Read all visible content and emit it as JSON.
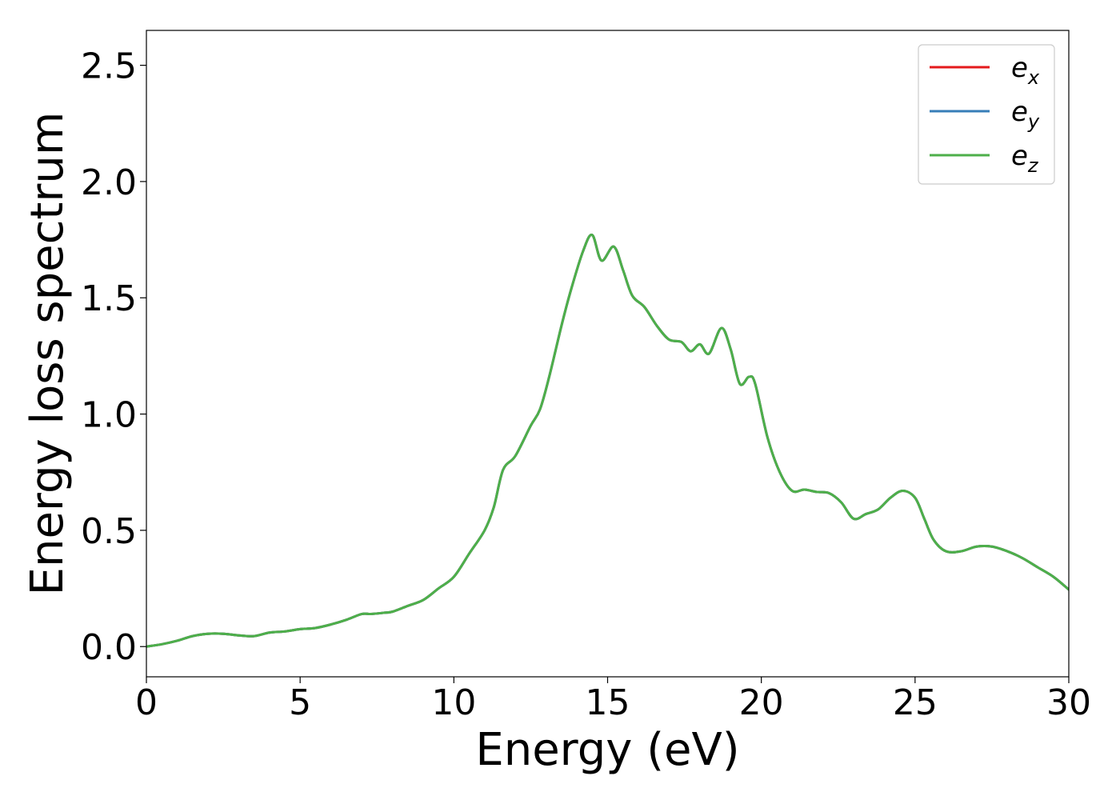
{
  "chart_data": {
    "type": "line",
    "xlabel": "Energy (eV)",
    "ylabel": "Energy loss spectrum",
    "xlim": [
      0,
      30
    ],
    "ylim": [
      -0.13,
      2.65
    ],
    "xticks": [
      0,
      5,
      10,
      15,
      20,
      25,
      30
    ],
    "xtick_labels": [
      "0",
      "5",
      "10",
      "15",
      "20",
      "25",
      "30"
    ],
    "yticks": [
      0.0,
      0.5,
      1.0,
      1.5,
      2.0,
      2.5
    ],
    "ytick_labels": [
      "0.0",
      "0.5",
      "1.0",
      "1.5",
      "2.0",
      "2.5"
    ],
    "grid": false,
    "legend": {
      "position": "top-right",
      "entries": [
        {
          "base": "e",
          "sub": "x",
          "color": "#e41a1c"
        },
        {
          "base": "e",
          "sub": "y",
          "color": "#377eb8"
        },
        {
          "base": "e",
          "sub": "z",
          "color": "#4daf4a"
        }
      ]
    },
    "x": [
      0,
      0.5,
      1,
      1.5,
      2,
      2.5,
      3,
      3.5,
      4,
      4.5,
      5,
      5.5,
      6,
      6.5,
      7,
      7.3,
      7.7,
      8,
      8.5,
      9,
      9.5,
      10,
      10.5,
      11,
      11.3,
      11.6,
      12,
      12.5,
      12.8,
      13.1,
      13.5,
      13.8,
      14.2,
      14.5,
      14.8,
      15.2,
      15.5,
      15.8,
      16.2,
      16.6,
      17,
      17.4,
      17.7,
      18,
      18.3,
      18.7,
      19,
      19.3,
      19.6,
      19.8,
      20.2,
      20.6,
      21,
      21.4,
      21.8,
      22.2,
      22.6,
      23,
      23.4,
      23.8,
      24.2,
      24.6,
      25,
      25.3,
      25.6,
      26,
      26.5,
      27,
      27.5,
      28,
      28.5,
      29,
      29.5,
      30
    ],
    "series": [
      {
        "name": "e_x",
        "color": "#e41a1c",
        "values": [
          0.0,
          0.01,
          0.025,
          0.045,
          0.055,
          0.055,
          0.048,
          0.045,
          0.06,
          0.065,
          0.075,
          0.08,
          0.095,
          0.115,
          0.14,
          0.14,
          0.145,
          0.15,
          0.175,
          0.2,
          0.25,
          0.3,
          0.4,
          0.5,
          0.6,
          0.76,
          0.82,
          0.95,
          1.02,
          1.16,
          1.38,
          1.53,
          1.7,
          1.77,
          1.66,
          1.72,
          1.62,
          1.51,
          1.46,
          1.38,
          1.32,
          1.31,
          1.27,
          1.3,
          1.26,
          1.37,
          1.28,
          1.13,
          1.16,
          1.13,
          0.9,
          0.75,
          0.67,
          0.675,
          0.665,
          0.66,
          0.62,
          0.55,
          0.57,
          0.59,
          0.64,
          0.67,
          0.64,
          0.55,
          0.46,
          0.41,
          0.41,
          0.43,
          0.43,
          0.41,
          0.38,
          0.34,
          0.3,
          0.245
        ]
      },
      {
        "name": "e_y",
        "color": "#377eb8",
        "values": [
          0.0,
          0.01,
          0.025,
          0.045,
          0.055,
          0.055,
          0.048,
          0.045,
          0.06,
          0.065,
          0.075,
          0.08,
          0.095,
          0.115,
          0.14,
          0.14,
          0.145,
          0.15,
          0.175,
          0.2,
          0.25,
          0.3,
          0.4,
          0.5,
          0.6,
          0.76,
          0.82,
          0.95,
          1.02,
          1.16,
          1.38,
          1.53,
          1.7,
          1.77,
          1.66,
          1.72,
          1.62,
          1.51,
          1.46,
          1.38,
          1.32,
          1.31,
          1.27,
          1.3,
          1.26,
          1.37,
          1.28,
          1.13,
          1.16,
          1.13,
          0.9,
          0.75,
          0.67,
          0.675,
          0.665,
          0.66,
          0.62,
          0.55,
          0.57,
          0.59,
          0.64,
          0.67,
          0.64,
          0.55,
          0.46,
          0.41,
          0.41,
          0.43,
          0.43,
          0.41,
          0.38,
          0.34,
          0.3,
          0.245
        ]
      },
      {
        "name": "e_z",
        "color": "#4daf4a",
        "values": [
          0.0,
          0.01,
          0.025,
          0.045,
          0.055,
          0.055,
          0.048,
          0.045,
          0.06,
          0.065,
          0.075,
          0.08,
          0.095,
          0.115,
          0.14,
          0.14,
          0.145,
          0.15,
          0.175,
          0.2,
          0.25,
          0.3,
          0.4,
          0.5,
          0.6,
          0.76,
          0.82,
          0.95,
          1.02,
          1.16,
          1.38,
          1.53,
          1.7,
          1.77,
          1.66,
          1.72,
          1.62,
          1.51,
          1.46,
          1.38,
          1.32,
          1.31,
          1.27,
          1.3,
          1.26,
          1.37,
          1.28,
          1.13,
          1.16,
          1.13,
          0.9,
          0.75,
          0.67,
          0.675,
          0.665,
          0.66,
          0.62,
          0.55,
          0.57,
          0.59,
          0.64,
          0.67,
          0.64,
          0.55,
          0.46,
          0.41,
          0.41,
          0.43,
          0.43,
          0.41,
          0.38,
          0.34,
          0.3,
          0.245
        ]
      }
    ]
  }
}
